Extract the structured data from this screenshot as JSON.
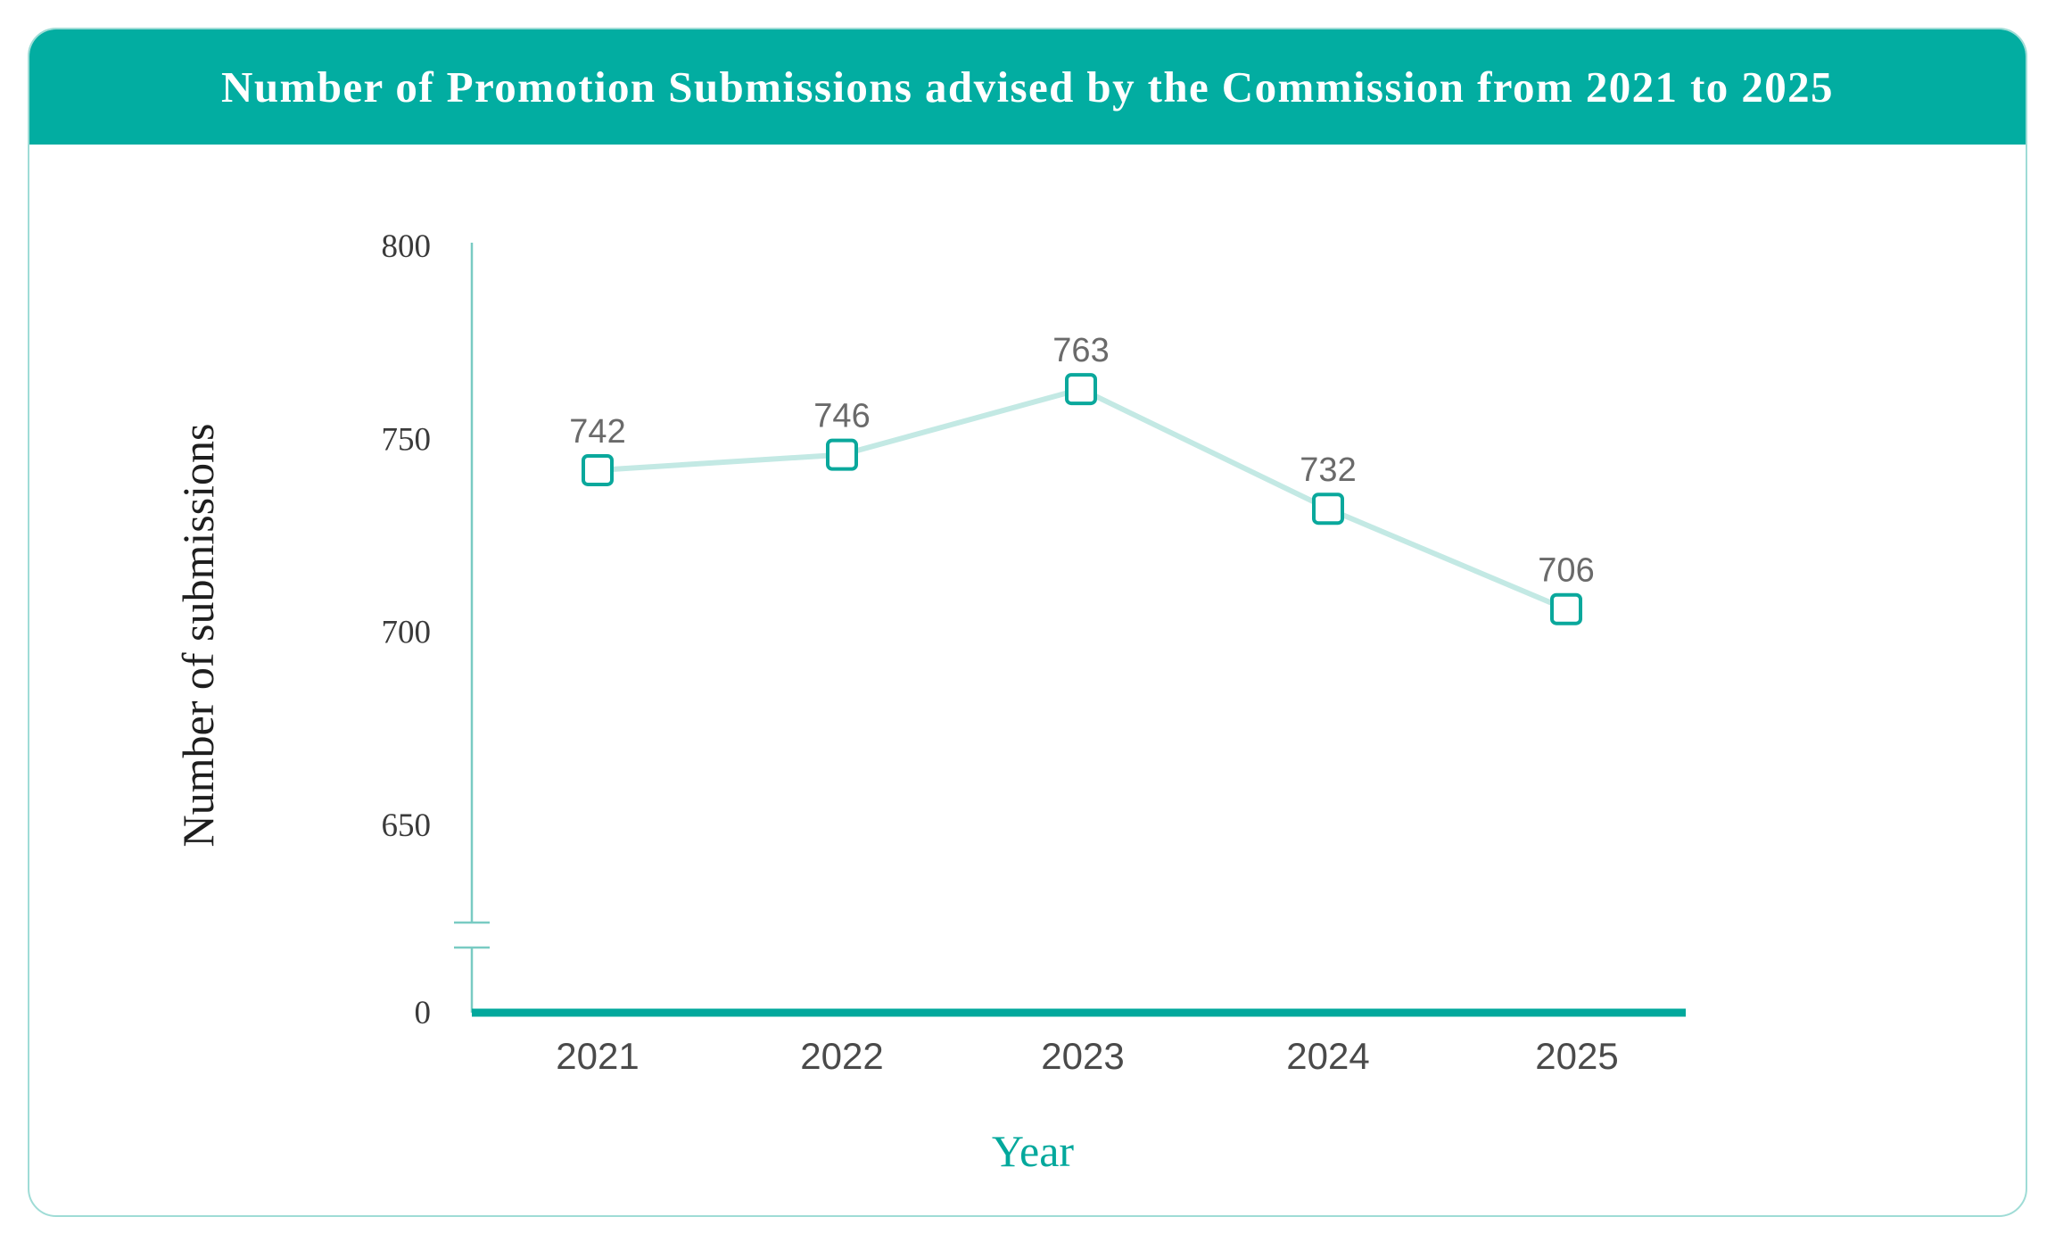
{
  "chart_data": {
    "type": "line",
    "title": "Number of Promotion Submissions advised by the Commission from 2021 to 2025",
    "xlabel": "Year",
    "ylabel": "Number of submissions",
    "categories": [
      "2021",
      "2022",
      "2023",
      "2024",
      "2025"
    ],
    "values": [
      742,
      746,
      763,
      732,
      706
    ],
    "value_labels": [
      "742",
      "746",
      "763",
      "732",
      "706"
    ],
    "y_ticks": [
      "800",
      "750",
      "700",
      "650",
      "0"
    ],
    "y_tick_values": [
      800,
      750,
      700,
      650,
      0
    ],
    "ylim": [
      650,
      800
    ],
    "y_axis_break": true,
    "grid": false,
    "legend": "none",
    "highlight_category": "2025",
    "colors": {
      "header": "#02ada1",
      "accent": "#02a89c",
      "line": "#c3e9e4",
      "marker_stroke": "#0aa89c",
      "axis": "#79cbc3",
      "baseline": "#02a89c",
      "label": "#6a6a6a",
      "highlight": "#02a89c"
    }
  }
}
